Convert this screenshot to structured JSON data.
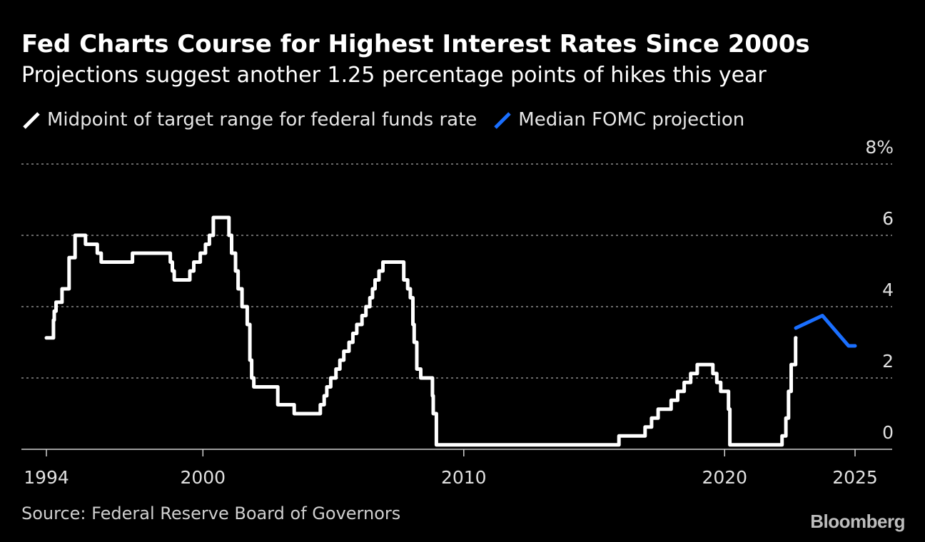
{
  "header": {
    "title": "Fed Charts Course for Highest Interest Rates Since 2000s",
    "subtitle": "Projections suggest another 1.25 percentage points of hikes this year"
  },
  "legend": {
    "series_0": "Midpoint of target range for federal funds rate",
    "series_1": "Median FOMC projection"
  },
  "footer": {
    "source": "Source: Federal Reserve Board of Governors",
    "brand": "Bloomberg"
  },
  "colors": {
    "background": "#000000",
    "series_0": "#ffffff",
    "series_1": "#1a6fff",
    "grid": "#8c8c8c"
  },
  "chart_data": {
    "type": "line",
    "title": "Fed Charts Course for Highest Interest Rates Since 2000s",
    "xlabel": "",
    "ylabel": "",
    "xlim": [
      1993.0,
      2026.4
    ],
    "ylim": [
      -0.6,
      8
    ],
    "x_ticks": [
      1994,
      2000,
      2010,
      2020,
      2025
    ],
    "x_tick_labels": [
      "1994",
      "2000",
      "2010",
      "2020",
      "2025"
    ],
    "y_ticks": [
      0,
      2,
      4,
      6,
      8
    ],
    "y_tick_labels": [
      "0",
      "2",
      "4",
      "6",
      "8%"
    ],
    "grid": "horizontal-dotted",
    "legend_position": "top-left",
    "series": [
      {
        "name": "Midpoint of target range for federal funds rate",
        "color": "#ffffff",
        "step": true,
        "points": [
          [
            1994.0,
            3.125
          ],
          [
            1994.27,
            3.625
          ],
          [
            1994.3,
            3.875
          ],
          [
            1994.37,
            4.125
          ],
          [
            1994.6,
            4.5
          ],
          [
            1994.87,
            5.375
          ],
          [
            1995.1,
            6.0
          ],
          [
            1995.5,
            5.75
          ],
          [
            1995.95,
            5.5
          ],
          [
            1996.1,
            5.25
          ],
          [
            1997.3,
            5.5
          ],
          [
            1998.75,
            5.25
          ],
          [
            1998.83,
            5.0
          ],
          [
            1998.9,
            4.75
          ],
          [
            1999.5,
            5.0
          ],
          [
            1999.65,
            5.25
          ],
          [
            1999.9,
            5.5
          ],
          [
            2000.1,
            5.75
          ],
          [
            2000.25,
            6.0
          ],
          [
            2000.4,
            6.5
          ],
          [
            2001.0,
            6.0
          ],
          [
            2001.1,
            5.5
          ],
          [
            2001.25,
            5.0
          ],
          [
            2001.35,
            4.5
          ],
          [
            2001.5,
            4.0
          ],
          [
            2001.7,
            3.5
          ],
          [
            2001.8,
            2.5
          ],
          [
            2001.87,
            2.0
          ],
          [
            2001.95,
            1.75
          ],
          [
            2002.87,
            1.25
          ],
          [
            2003.5,
            1.0
          ],
          [
            2004.5,
            1.25
          ],
          [
            2004.65,
            1.5
          ],
          [
            2004.75,
            1.75
          ],
          [
            2004.9,
            2.0
          ],
          [
            2005.1,
            2.25
          ],
          [
            2005.25,
            2.5
          ],
          [
            2005.4,
            2.75
          ],
          [
            2005.6,
            3.0
          ],
          [
            2005.75,
            3.25
          ],
          [
            2005.9,
            3.5
          ],
          [
            2006.1,
            3.75
          ],
          [
            2006.25,
            4.0
          ],
          [
            2006.4,
            4.25
          ],
          [
            2006.5,
            4.5
          ],
          [
            2006.6,
            4.75
          ],
          [
            2006.75,
            5.0
          ],
          [
            2006.9,
            5.25
          ],
          [
            2007.5,
            5.25
          ],
          [
            2007.7,
            4.75
          ],
          [
            2007.85,
            4.5
          ],
          [
            2007.95,
            4.25
          ],
          [
            2008.05,
            3.5
          ],
          [
            2008.1,
            3.0
          ],
          [
            2008.2,
            2.25
          ],
          [
            2008.35,
            2.0
          ],
          [
            2008.8,
            1.5
          ],
          [
            2008.83,
            1.0
          ],
          [
            2008.95,
            0.125
          ],
          [
            2015.95,
            0.375
          ],
          [
            2016.95,
            0.625
          ],
          [
            2017.2,
            0.875
          ],
          [
            2017.45,
            1.125
          ],
          [
            2017.95,
            1.375
          ],
          [
            2018.2,
            1.625
          ],
          [
            2018.45,
            1.875
          ],
          [
            2018.7,
            2.125
          ],
          [
            2018.95,
            2.375
          ],
          [
            2019.55,
            2.125
          ],
          [
            2019.7,
            1.875
          ],
          [
            2019.85,
            1.625
          ],
          [
            2020.15,
            1.125
          ],
          [
            2020.2,
            0.125
          ],
          [
            2022.2,
            0.375
          ],
          [
            2022.35,
            0.875
          ],
          [
            2022.45,
            1.625
          ],
          [
            2022.55,
            2.375
          ],
          [
            2022.72,
            3.125
          ],
          [
            2022.73,
            3.125
          ]
        ]
      },
      {
        "name": "Median FOMC projection",
        "color": "#1a6fff",
        "step": false,
        "points": [
          [
            2022.73,
            3.4
          ],
          [
            2023.75,
            3.75
          ],
          [
            2024.75,
            2.9
          ],
          [
            2025.0,
            2.9
          ]
        ]
      }
    ]
  }
}
